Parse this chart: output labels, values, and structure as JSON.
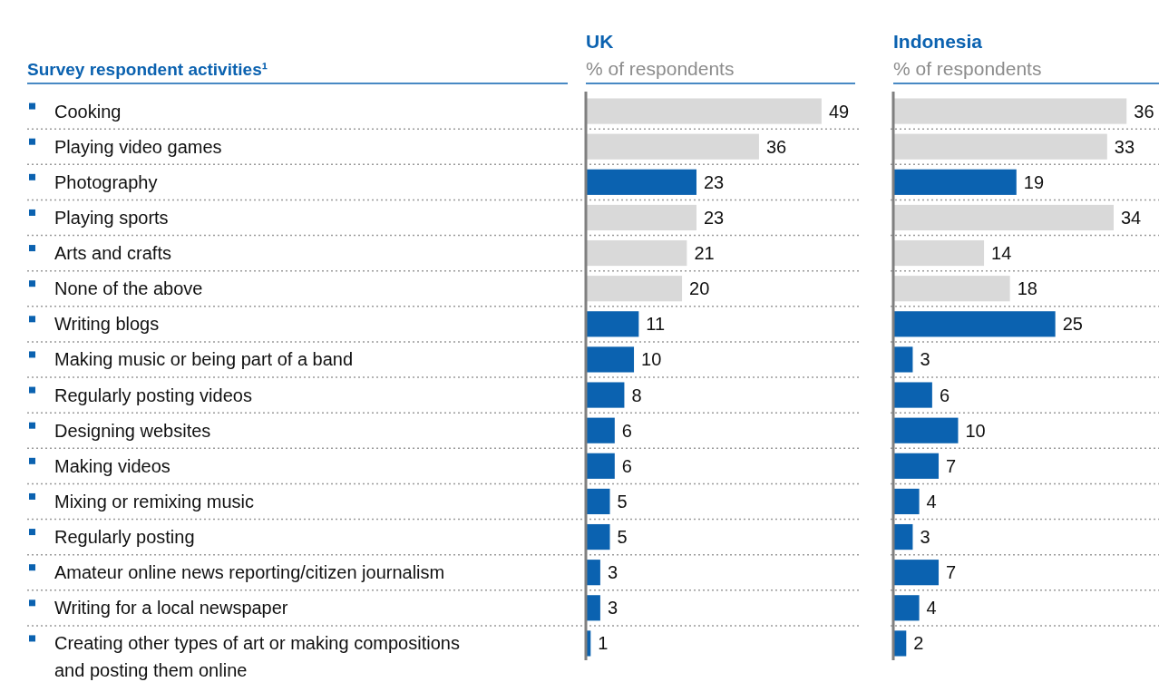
{
  "chart_data": [
    {
      "type": "bar",
      "orientation": "horizontal",
      "title": "UK",
      "subtitle": "% of respondents",
      "ylabel": "Survey respondent activities¹",
      "categories": [
        "Cooking",
        "Playing video games",
        "Photography",
        "Playing sports",
        "Arts and crafts",
        "None of the above",
        "Writing blogs",
        "Making music or being part of a band",
        "Regularly posting videos",
        "Designing websites",
        "Making videos",
        "Mixing or remixing music",
        "Regularly posting",
        "Amateur online news reporting/citizen journalism",
        "Writing for a local newspaper",
        "Creating other types of art or making compositions and posting them online"
      ],
      "values": [
        49,
        36,
        23,
        23,
        21,
        20,
        11,
        10,
        8,
        6,
        6,
        5,
        5,
        3,
        3,
        1
      ],
      "colors": [
        "#d9d9d9",
        "#d9d9d9",
        "#0b62b0",
        "#d9d9d9",
        "#d9d9d9",
        "#d9d9d9",
        "#0b62b0",
        "#0b62b0",
        "#0b62b0",
        "#0b62b0",
        "#0b62b0",
        "#0b62b0",
        "#0b62b0",
        "#0b62b0",
        "#0b62b0",
        "#0b62b0"
      ],
      "xlim": [
        0,
        56
      ],
      "data_labels": true,
      "grid": "y",
      "tick_labels": "y"
    },
    {
      "type": "bar",
      "orientation": "horizontal",
      "title": "Indonesia",
      "subtitle": "% of respondents",
      "categories": [
        null,
        null,
        null,
        null,
        null,
        null,
        null,
        null,
        null,
        null,
        null,
        null,
        null,
        null,
        null,
        null
      ],
      "values": [
        36,
        33,
        19,
        34,
        14,
        18,
        25,
        3,
        6,
        10,
        7,
        4,
        3,
        7,
        4,
        2
      ],
      "colors": [
        "#d9d9d9",
        "#d9d9d9",
        "#0b62b0",
        "#d9d9d9",
        "#d9d9d9",
        "#d9d9d9",
        "#0b62b0",
        "#0b62b0",
        "#0b62b0",
        "#0b62b0",
        "#0b62b0",
        "#0b62b0",
        "#0b62b0",
        "#0b62b0",
        "#0b62b0",
        "#0b62b0"
      ],
      "xlim": [
        0,
        41
      ],
      "data_labels": true,
      "grid": "y",
      "tick_labels": false
    }
  ]
}
